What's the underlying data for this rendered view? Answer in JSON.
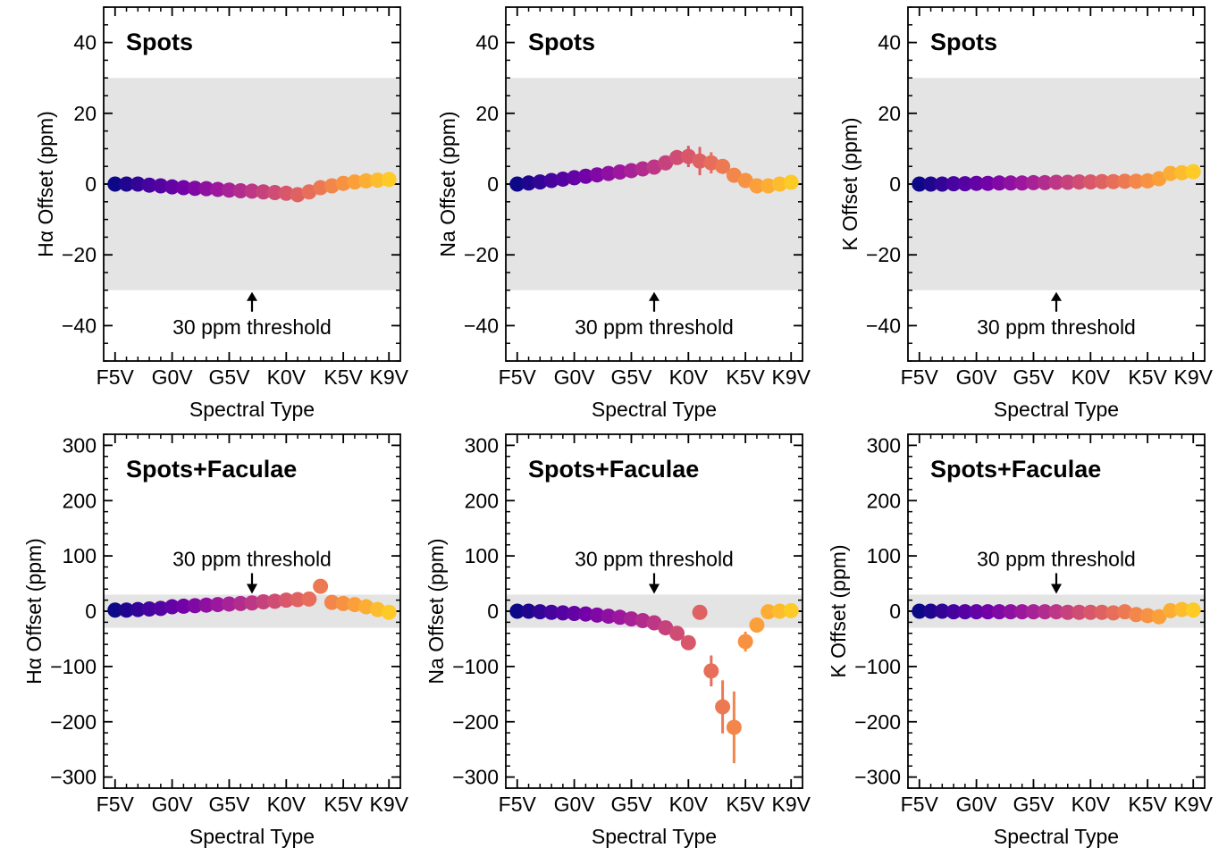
{
  "colors": {
    "threshold_band": "#e4e4e4",
    "frame": "#000000",
    "colormap": [
      "#0d0887",
      "#46039f",
      "#7201a8",
      "#9c179e",
      "#bd3786",
      "#d8576b",
      "#ed7953",
      "#fb9f3a",
      "#fdca26"
    ]
  },
  "chart_data": [
    {
      "type": "scatter",
      "title": "Spots",
      "xlabel": "Spectral Type",
      "ylabel": "Hα Offset (ppm)",
      "xticks": [
        "F5V",
        "G0V",
        "G5V",
        "K0V",
        "K5V",
        "K9V"
      ],
      "xtick_positions": [
        0,
        5,
        10,
        15,
        20,
        24
      ],
      "xlim": [
        -1,
        25
      ],
      "ylim": [
        -50,
        50
      ],
      "yticks": [
        40,
        20,
        0,
        -20,
        -40
      ],
      "ytick_labels": [
        "40",
        "20",
        "0",
        "−20",
        "−40"
      ],
      "threshold_band": [
        -30,
        30
      ],
      "annotation": {
        "text": "30 ppm threshold",
        "arrow": "up"
      },
      "x": [
        0,
        1,
        2,
        3,
        4,
        5,
        6,
        7,
        8,
        9,
        10,
        11,
        12,
        13,
        14,
        15,
        16,
        17,
        18,
        19,
        20,
        21,
        22,
        23,
        24
      ],
      "values": [
        0,
        0,
        0,
        -0.3,
        -0.5,
        -0.8,
        -1,
        -1.2,
        -1.3,
        -1.5,
        -1.7,
        -1.9,
        -2,
        -2.2,
        -2.4,
        -2.6,
        -3,
        -2.2,
        -1,
        -0.5,
        0.2,
        0.6,
        0.9,
        1.1,
        1.3
      ],
      "errors": [
        0,
        0,
        0,
        0,
        0,
        0,
        0,
        0,
        0,
        0,
        0,
        0,
        0,
        0,
        0,
        0,
        0,
        0,
        0,
        0,
        0,
        0,
        0,
        0,
        0
      ]
    },
    {
      "type": "scatter",
      "title": "Spots",
      "xlabel": "Spectral Type",
      "ylabel": "Na Offset (ppm)",
      "xticks": [
        "F5V",
        "G0V",
        "G5V",
        "K0V",
        "K5V",
        "K9V"
      ],
      "xtick_positions": [
        0,
        5,
        10,
        15,
        20,
        24
      ],
      "xlim": [
        -1,
        25
      ],
      "ylim": [
        -50,
        50
      ],
      "yticks": [
        40,
        20,
        0,
        -20,
        -40
      ],
      "ytick_labels": [
        "40",
        "20",
        "0",
        "−20",
        "−40"
      ],
      "threshold_band": [
        -30,
        30
      ],
      "annotation": {
        "text": "30 ppm threshold",
        "arrow": "up"
      },
      "x": [
        0,
        1,
        2,
        3,
        4,
        5,
        6,
        7,
        8,
        9,
        10,
        11,
        12,
        13,
        14,
        15,
        16,
        17,
        18,
        19,
        20,
        21,
        22,
        23,
        24
      ],
      "values": [
        0,
        0.3,
        0.6,
        1,
        1.4,
        1.8,
        2.2,
        2.6,
        3,
        3.4,
        3.8,
        4.3,
        4.8,
        6,
        7.5,
        7.8,
        6.5,
        6,
        5,
        2.5,
        1,
        -0.5,
        -0.5,
        0,
        0.5
      ],
      "errors": [
        0,
        0,
        0,
        0,
        0,
        0,
        0,
        0,
        0,
        0,
        0,
        0,
        0,
        0,
        0,
        3,
        4,
        3,
        2,
        0,
        0,
        0,
        0,
        0,
        0
      ]
    },
    {
      "type": "scatter",
      "title": "Spots",
      "xlabel": "Spectral Type",
      "ylabel": "K Offset (ppm)",
      "xticks": [
        "F5V",
        "G0V",
        "G5V",
        "K0V",
        "K5V",
        "K9V"
      ],
      "xtick_positions": [
        0,
        5,
        10,
        15,
        20,
        24
      ],
      "xlim": [
        -1,
        25
      ],
      "ylim": [
        -50,
        50
      ],
      "yticks": [
        40,
        20,
        0,
        -20,
        -40
      ],
      "ytick_labels": [
        "40",
        "20",
        "0",
        "−20",
        "−40"
      ],
      "threshold_band": [
        -30,
        30
      ],
      "annotation": {
        "text": "30 ppm threshold",
        "arrow": "up"
      },
      "x": [
        0,
        1,
        2,
        3,
        4,
        5,
        6,
        7,
        8,
        9,
        10,
        11,
        12,
        13,
        14,
        15,
        16,
        17,
        18,
        19,
        20,
        21,
        22,
        23,
        24
      ],
      "values": [
        0,
        0,
        0,
        0.1,
        0.1,
        0.2,
        0.2,
        0.3,
        0.3,
        0.3,
        0.4,
        0.4,
        0.5,
        0.5,
        0.6,
        0.6,
        0.7,
        0.7,
        0.8,
        0.8,
        0.9,
        1.5,
        3,
        3.2,
        3.5
      ],
      "errors": [
        0,
        0,
        0,
        0,
        0,
        0,
        0,
        0,
        0,
        0,
        0,
        0,
        0,
        0,
        0,
        0,
        0,
        0,
        0,
        0,
        0,
        0,
        0,
        0,
        0
      ]
    },
    {
      "type": "scatter",
      "title": "Spots+Faculae",
      "xlabel": "Spectral Type",
      "ylabel": "Hα Offset (ppm)",
      "xticks": [
        "F5V",
        "G0V",
        "G5V",
        "K0V",
        "K5V",
        "K9V"
      ],
      "xtick_positions": [
        0,
        5,
        10,
        15,
        20,
        24
      ],
      "xlim": [
        -1,
        25
      ],
      "ylim": [
        -320,
        320
      ],
      "yticks": [
        300,
        200,
        100,
        0,
        -100,
        -200,
        -300
      ],
      "ytick_labels": [
        "300",
        "200",
        "100",
        "0",
        "−100",
        "−200",
        "−300"
      ],
      "threshold_band": [
        -30,
        30
      ],
      "annotation": {
        "text": "30 ppm threshold",
        "arrow": "down"
      },
      "x": [
        0,
        1,
        2,
        3,
        4,
        5,
        6,
        7,
        8,
        9,
        10,
        11,
        12,
        13,
        14,
        15,
        16,
        17,
        18,
        19,
        20,
        21,
        22,
        23,
        24
      ],
      "values": [
        2,
        2,
        3,
        4,
        5,
        8,
        9,
        10,
        11,
        12,
        13,
        14,
        15,
        17,
        18,
        20,
        21,
        22,
        45,
        16,
        14,
        12,
        8,
        3,
        -2
      ],
      "errors": [
        0,
        0,
        0,
        0,
        0,
        0,
        0,
        0,
        0,
        0,
        0,
        0,
        0,
        0,
        0,
        0,
        0,
        0,
        0,
        0,
        0,
        0,
        0,
        0,
        0
      ]
    },
    {
      "type": "scatter",
      "title": "Spots+Faculae",
      "xlabel": "Spectral Type",
      "ylabel": "Na Offset (ppm)",
      "xticks": [
        "F5V",
        "G0V",
        "G5V",
        "K0V",
        "K5V",
        "K9V"
      ],
      "xtick_positions": [
        0,
        5,
        10,
        15,
        20,
        24
      ],
      "xlim": [
        -1,
        25
      ],
      "ylim": [
        -320,
        320
      ],
      "yticks": [
        300,
        200,
        100,
        0,
        -100,
        -200,
        -300
      ],
      "ytick_labels": [
        "300",
        "200",
        "100",
        "0",
        "−100",
        "−200",
        "−300"
      ],
      "threshold_band": [
        -30,
        30
      ],
      "annotation": {
        "text": "30 ppm threshold",
        "arrow": "down"
      },
      "x": [
        0,
        1,
        2,
        3,
        4,
        5,
        6,
        7,
        8,
        9,
        10,
        11,
        12,
        13,
        14,
        15,
        16,
        17,
        18,
        19,
        20,
        21,
        22,
        23,
        24
      ],
      "values": [
        0,
        0,
        -1,
        -2,
        -3,
        -4,
        -5,
        -7,
        -9,
        -11,
        -14,
        -17,
        -21,
        -30,
        -40,
        -57,
        -2,
        -108,
        -173,
        -210,
        -55,
        -25,
        -1,
        0,
        1
      ],
      "errors": [
        0,
        0,
        0,
        0,
        0,
        0,
        0,
        0,
        0,
        0,
        0,
        0,
        0,
        0,
        0,
        0,
        0,
        28,
        48,
        65,
        18,
        0,
        0,
        0,
        0
      ]
    },
    {
      "type": "scatter",
      "title": "Spots+Faculae",
      "xlabel": "Spectral Type",
      "ylabel": "K Offset (ppm)",
      "xticks": [
        "F5V",
        "G0V",
        "G5V",
        "K0V",
        "K5V",
        "K9V"
      ],
      "xtick_positions": [
        0,
        5,
        10,
        15,
        20,
        24
      ],
      "xlim": [
        -1,
        25
      ],
      "ylim": [
        -320,
        320
      ],
      "yticks": [
        300,
        200,
        100,
        0,
        -100,
        -200,
        -300
      ],
      "ytick_labels": [
        "300",
        "200",
        "100",
        "0",
        "−100",
        "−200",
        "−300"
      ],
      "threshold_band": [
        -30,
        30
      ],
      "annotation": {
        "text": "30 ppm threshold",
        "arrow": "down"
      },
      "x": [
        0,
        1,
        2,
        3,
        4,
        5,
        6,
        7,
        8,
        9,
        10,
        11,
        12,
        13,
        14,
        15,
        16,
        17,
        18,
        19,
        20,
        21,
        22,
        23,
        24
      ],
      "values": [
        0,
        0,
        0,
        -1,
        -1,
        -1,
        -1,
        -1,
        -1,
        -1,
        -1,
        -1,
        -1,
        -2,
        -2,
        -2,
        -2,
        -3,
        -1,
        -6,
        -8,
        -10,
        1,
        3,
        2
      ],
      "errors": [
        0,
        0,
        0,
        0,
        0,
        0,
        0,
        0,
        0,
        0,
        0,
        0,
        0,
        0,
        0,
        0,
        0,
        0,
        0,
        0,
        0,
        0,
        0,
        0,
        0
      ]
    }
  ]
}
